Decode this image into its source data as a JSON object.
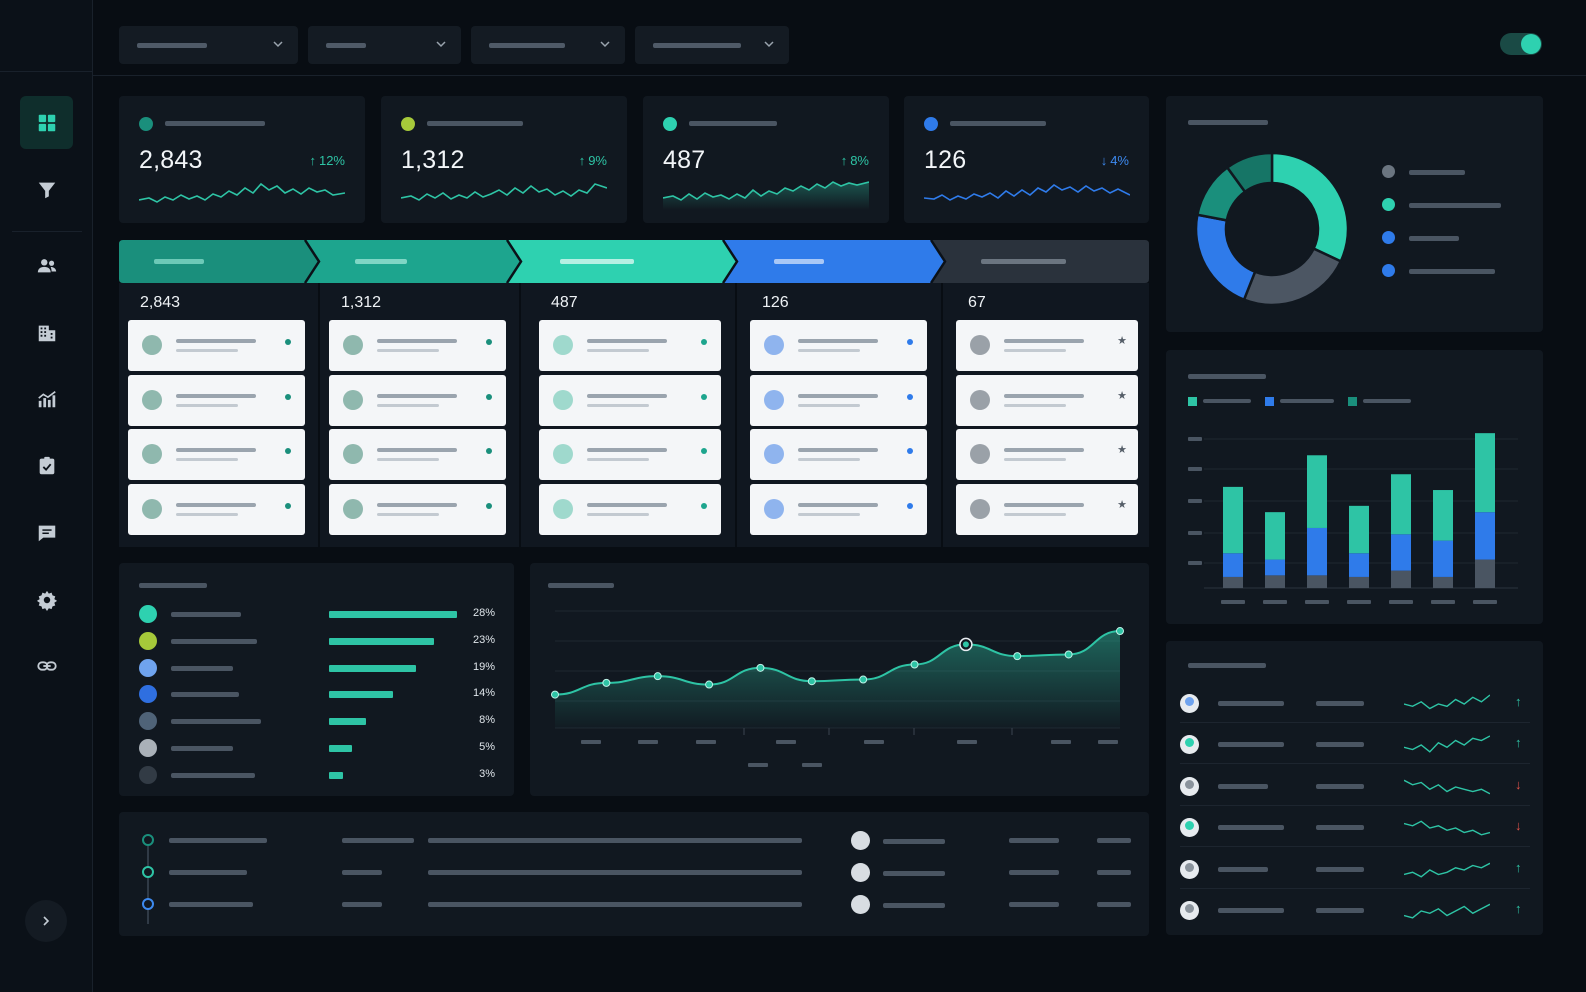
{
  "colors": {
    "bg": "#080d13",
    "panel": "#111820",
    "teal_dark": "#1a8f7c",
    "teal": "#2ec4a5",
    "teal_bright": "#2ed1b0",
    "lime": "#a6c93a",
    "blue": "#2f7bea",
    "gray": "#3a434e"
  },
  "sidebar": {
    "items": [
      {
        "icon": "dashboard-grid-icon",
        "active": true
      },
      {
        "icon": "filter-funnel-icon"
      },
      {
        "icon": "users-icon"
      },
      {
        "icon": "building-icon"
      },
      {
        "icon": "analytics-chart-icon"
      },
      {
        "icon": "clipboard-check-icon"
      },
      {
        "icon": "chat-message-icon"
      },
      {
        "icon": "gear-icon"
      },
      {
        "icon": "link-icon"
      }
    ],
    "expand_icon": "chevron-right-icon"
  },
  "topbar": {
    "filters": [
      {
        "icon": "chevron-down-icon"
      },
      {
        "icon": "chevron-down-icon"
      },
      {
        "icon": "chevron-down-icon"
      },
      {
        "icon": "chevron-down-icon"
      }
    ],
    "toggle_on": true
  },
  "kpis": [
    {
      "value": "2,843",
      "delta": "12%",
      "direction": "up",
      "color": "#1a8f7c"
    },
    {
      "value": "1,312",
      "delta": "9%",
      "direction": "up",
      "color": "#a6c93a"
    },
    {
      "value": "487",
      "delta": "8%",
      "direction": "up",
      "color": "#2ed1b0"
    },
    {
      "value": "126",
      "delta": "4%",
      "direction": "down",
      "color": "#2f7bea"
    }
  ],
  "pipeline": {
    "stages": [
      {
        "count": "2,843",
        "color": "#1a8f7c"
      },
      {
        "count": "1,312",
        "color": "#1da58e"
      },
      {
        "count": "487",
        "color": "#2ed1b0"
      },
      {
        "count": "126",
        "color": "#2f7bea"
      },
      {
        "count": "67",
        "color": "#2a323c"
      }
    ]
  },
  "donut": {
    "slices": [
      {
        "value": 32,
        "color": "#2ed1b0"
      },
      {
        "value": 24,
        "color": "#4c5663"
      },
      {
        "value": 22,
        "color": "#2f7bea"
      },
      {
        "value": 12,
        "color": "#1a8f7c"
      },
      {
        "value": 10,
        "color": "#167566"
      }
    ],
    "legend": [
      {
        "color": "#6b7580"
      },
      {
        "color": "#2ed1b0"
      },
      {
        "color": "#2f7bea"
      },
      {
        "color": "#2f7bea"
      }
    ]
  },
  "chart_data": [
    {
      "type": "bar",
      "stacked": true,
      "series_colors": [
        "#2ec4a5",
        "#2f7bea",
        "#4a5562"
      ],
      "series": [
        {
          "values": [
            42,
            30,
            46,
            30,
            38,
            32,
            50
          ]
        },
        {
          "values": [
            15,
            10,
            30,
            15,
            23,
            23,
            30
          ]
        },
        {
          "values": [
            7,
            8,
            8,
            7,
            11,
            7,
            18
          ]
        }
      ],
      "ylim": [
        0,
        100
      ]
    },
    {
      "type": "area",
      "values": [
        20,
        27,
        31,
        26,
        36,
        28,
        29,
        38,
        50,
        43,
        44,
        58
      ],
      "highlight_index": 8,
      "ylim": [
        0,
        70
      ]
    }
  ],
  "breakdown": [
    {
      "pct": "28%",
      "share": 28,
      "color": "#2ed1b0"
    },
    {
      "pct": "23%",
      "share": 23,
      "color": "#a6c93a"
    },
    {
      "pct": "19%",
      "share": 19,
      "color": "#6fa3ee"
    },
    {
      "pct": "14%",
      "share": 14,
      "color": "#2f6fe0"
    },
    {
      "pct": "8%",
      "share": 8,
      "color": "#4f6378"
    },
    {
      "pct": "5%",
      "share": 5,
      "color": "#aab1b8"
    },
    {
      "pct": "3%",
      "share": 3,
      "color": "#323b45"
    }
  ],
  "top_list": [
    {
      "trend": "up",
      "avatar_color": "#6fa3ee",
      "spark": [
        6,
        5,
        7,
        4,
        6,
        5,
        8,
        6,
        9,
        7,
        10
      ]
    },
    {
      "trend": "up",
      "avatar_color": "#2ed1b0",
      "spark": [
        5,
        4,
        6,
        3,
        7,
        5,
        8,
        6,
        9,
        8,
        10
      ]
    },
    {
      "trend": "down",
      "avatar_color": "#8a939c",
      "spark": [
        9,
        7,
        8,
        5,
        7,
        4,
        6,
        5,
        4,
        5,
        3
      ]
    },
    {
      "trend": "down",
      "avatar_color": "#2ed1b0",
      "spark": [
        8,
        7,
        9,
        6,
        7,
        5,
        6,
        4,
        5,
        3,
        4
      ]
    },
    {
      "trend": "up",
      "avatar_color": "#8a939c",
      "spark": [
        4,
        5,
        3,
        6,
        4,
        5,
        7,
        6,
        8,
        7,
        9
      ]
    },
    {
      "trend": "up",
      "avatar_color": "#8a939c",
      "spark": [
        4,
        3,
        6,
        5,
        7,
        4,
        6,
        8,
        5,
        7,
        9
      ]
    }
  ]
}
